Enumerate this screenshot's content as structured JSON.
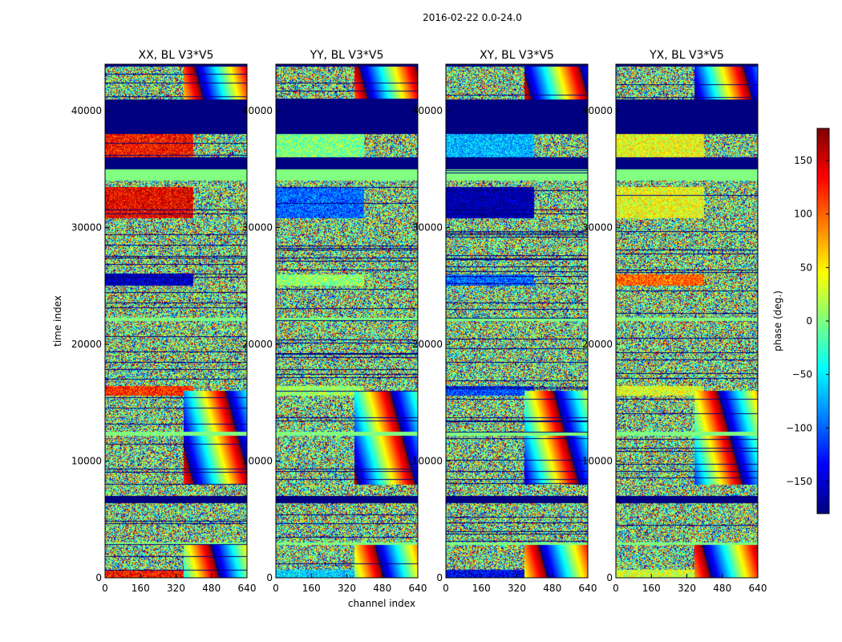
{
  "chart_data": {
    "type": "heatmap",
    "suptitle": "2016-02-22 0.0-24.0",
    "xlabel": "channel index",
    "ylabel": "time index",
    "xlim": [
      0,
      640
    ],
    "ylim": [
      0,
      44000
    ],
    "x_ticks": [
      0,
      160,
      320,
      480,
      640
    ],
    "y_ticks": [
      0,
      10000,
      20000,
      30000,
      40000
    ],
    "panels": [
      {
        "title": "XX, BL V3*V5",
        "tint_rows": [
          [
            0,
            700,
            130
          ],
          [
            15600,
            16400,
            120
          ],
          [
            25000,
            26000,
            -160
          ],
          [
            30800,
            33500,
            140
          ],
          [
            35500,
            38000,
            130
          ]
        ]
      },
      {
        "title": "YY, BL V3*V5",
        "tint_rows": [
          [
            0,
            700,
            -60
          ],
          [
            15600,
            16400,
            10
          ],
          [
            25000,
            26000,
            5
          ],
          [
            30800,
            33500,
            -100
          ],
          [
            35500,
            38000,
            0
          ]
        ]
      },
      {
        "title": "XY, BL V3*V5",
        "tint_rows": [
          [
            0,
            700,
            -140
          ],
          [
            15600,
            16400,
            -110
          ],
          [
            25000,
            26000,
            -100
          ],
          [
            30800,
            33500,
            -170
          ],
          [
            35500,
            38000,
            -70
          ]
        ]
      },
      {
        "title": "YX, BL V3*V5",
        "tint_rows": [
          [
            0,
            700,
            30
          ],
          [
            15600,
            16400,
            35
          ],
          [
            25000,
            26000,
            100
          ],
          [
            30800,
            33500,
            40
          ],
          [
            35500,
            38000,
            40
          ]
        ]
      }
    ],
    "flagged_ranges": {
      "constant_negative": [
        [
          6400,
          7000
        ],
        [
          35000,
          36000
        ],
        [
          38000,
          41000
        ],
        [
          43800,
          44000
        ]
      ],
      "constant_zero": [
        [
          34000,
          35000
        ],
        [
          22000,
          22300
        ],
        [
          12200,
          12500
        ],
        [
          2800,
          3000
        ]
      ]
    },
    "colorbar": {
      "label": "phase (deg.)",
      "range": [
        -180,
        180
      ],
      "ticks": [
        -150,
        -100,
        -50,
        0,
        50,
        100,
        150
      ],
      "tick_labels": [
        "−150",
        "−100",
        "−50",
        "0",
        "50",
        "100",
        "150"
      ],
      "colormap": "jet"
    }
  }
}
